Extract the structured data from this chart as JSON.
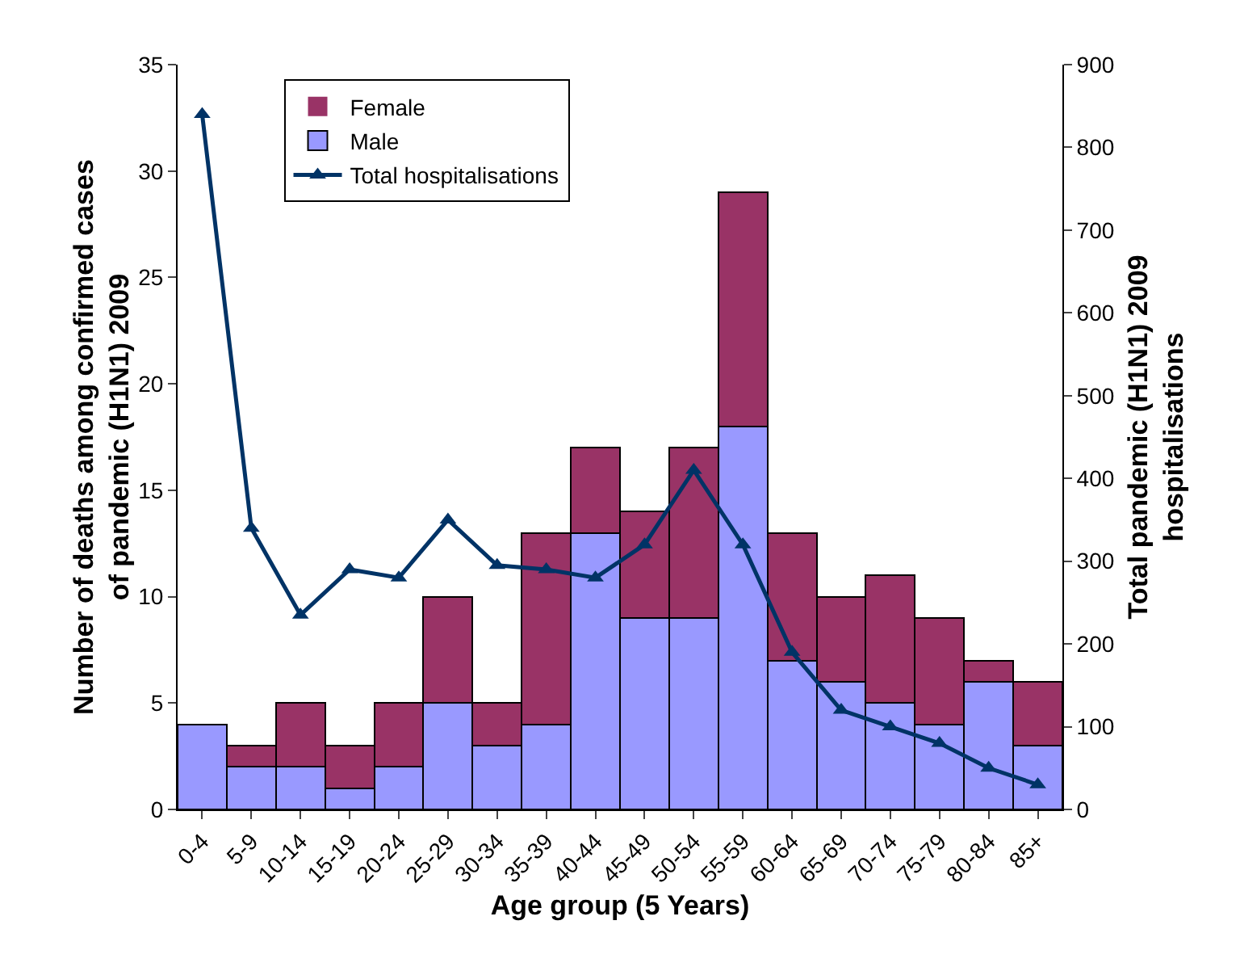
{
  "chart_data": {
    "type": "bar",
    "stacked": true,
    "xlabel": "Age group (5 Years)",
    "ylabel": "Number of deaths among confirmed cases of pandemic (H1N1) 2009",
    "y2label": "Total pandemic (H1N1) 2009 hospitalisations",
    "categories": [
      "0-4",
      "5-9",
      "10-14",
      "15-19",
      "20-24",
      "25-29",
      "30-34",
      "35-39",
      "40-44",
      "45-49",
      "50-54",
      "55-59",
      "60-64",
      "65-69",
      "70-74",
      "75-79",
      "80-84",
      "85+"
    ],
    "series": [
      {
        "name": "Male",
        "color": "#9999ff",
        "values": [
          4,
          2,
          2,
          1,
          2,
          5,
          3,
          4,
          13,
          9,
          9,
          18,
          7,
          6,
          5,
          4,
          6,
          3
        ]
      },
      {
        "name": "Female",
        "color": "#993366",
        "values": [
          0,
          1,
          3,
          2,
          3,
          5,
          2,
          9,
          4,
          5,
          8,
          11,
          6,
          4,
          6,
          5,
          1,
          3
        ]
      },
      {
        "name": "Total hospitalisations",
        "type": "line",
        "axis": "y2",
        "color": "#003366",
        "marker": "triangle",
        "values": [
          840,
          340,
          235,
          290,
          280,
          350,
          295,
          290,
          280,
          320,
          410,
          320,
          190,
          120,
          100,
          80,
          50,
          30
        ]
      }
    ],
    "ylim": [
      0,
      35
    ],
    "yticks": [
      0,
      5,
      10,
      15,
      20,
      25,
      30,
      35
    ],
    "y2lim": [
      0,
      900
    ],
    "y2ticks": [
      0,
      100,
      200,
      300,
      400,
      500,
      600,
      700,
      800,
      900
    ],
    "grid": false,
    "legend": "top left"
  }
}
